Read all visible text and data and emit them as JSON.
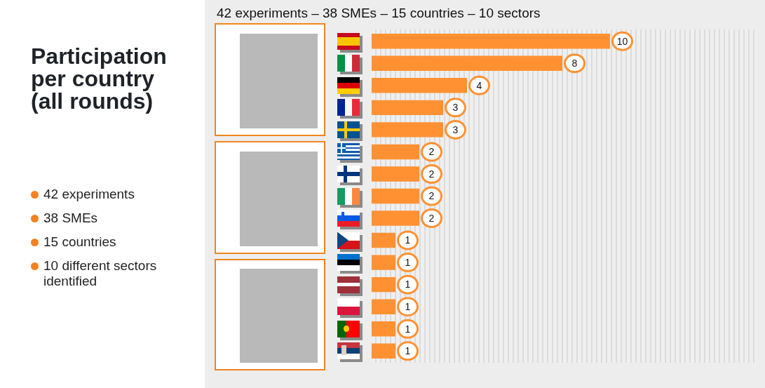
{
  "chart_data": {
    "type": "bar",
    "orientation": "horizontal",
    "title": "Participation per country (all rounds)",
    "subtitle": "42 experiments – 38 SMEs – 15 countries – 10 sectors",
    "annotations": [
      "42 experiments",
      "38 SMEs",
      "15 countries",
      "10 different sectors identified"
    ],
    "categories": [
      null,
      null,
      null,
      null,
      null,
      null,
      null,
      null,
      null,
      null,
      null,
      null,
      null,
      null,
      null
    ],
    "values": [
      10,
      8,
      4,
      3,
      3,
      2,
      2,
      2,
      2,
      1,
      1,
      1,
      1,
      1,
      1
    ],
    "color": "#ff9133",
    "data_labels": true,
    "tick_labels": false
  }
}
